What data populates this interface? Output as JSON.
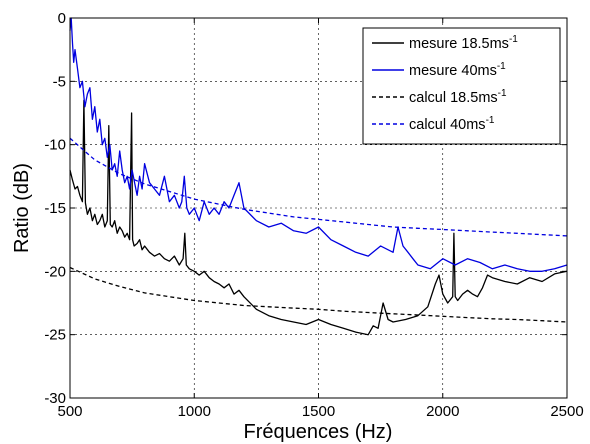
{
  "chart_data": {
    "type": "line",
    "title": "",
    "xlabel": "Fréquences (Hz)",
    "ylabel": "Ratio (dB)",
    "xlim": [
      500,
      2500
    ],
    "ylim": [
      -30,
      0
    ],
    "xticks": [
      500,
      1000,
      1500,
      2000,
      2500
    ],
    "yticks": [
      -30,
      -25,
      -20,
      -15,
      -10,
      -5,
      0
    ],
    "grid": true,
    "legend_position": "top-right",
    "series": [
      {
        "name": "mesure 18.5ms-1",
        "legend_base": "mesure 18.5ms",
        "legend_sup": "-1",
        "color": "#000000",
        "style": "solid",
        "x": [
          500,
          510,
          520,
          530,
          540,
          550,
          556,
          562,
          570,
          580,
          590,
          600,
          610,
          620,
          630,
          640,
          650,
          656,
          662,
          670,
          680,
          690,
          700,
          710,
          720,
          730,
          740,
          748,
          752,
          758,
          770,
          780,
          790,
          800,
          820,
          840,
          860,
          880,
          900,
          920,
          940,
          955,
          962,
          968,
          980,
          1000,
          1020,
          1040,
          1060,
          1080,
          1100,
          1120,
          1140,
          1160,
          1180,
          1200,
          1250,
          1300,
          1350,
          1400,
          1450,
          1500,
          1550,
          1600,
          1650,
          1700,
          1720,
          1740,
          1760,
          1780,
          1800,
          1850,
          1900,
          1940,
          1970,
          1985,
          2000,
          2020,
          2040,
          2045,
          2050,
          2060,
          2080,
          2100,
          2120,
          2140,
          2160,
          2180,
          2200,
          2250,
          2300,
          2350,
          2400,
          2450,
          2500
        ],
        "y": [
          -12,
          -12.8,
          -13.5,
          -13.3,
          -14.0,
          -14.5,
          -6.5,
          -14.6,
          -15.5,
          -15.0,
          -16.0,
          -15.5,
          -16.3,
          -16.0,
          -15.5,
          -16.5,
          -16.0,
          -8.5,
          -16.3,
          -16.5,
          -16.0,
          -17.0,
          -16.5,
          -16.8,
          -17.3,
          -17.0,
          -17.5,
          -7.5,
          -17.5,
          -18.0,
          -17.8,
          -17.5,
          -18.3,
          -18.0,
          -18.5,
          -18.8,
          -18.6,
          -19.0,
          -19.2,
          -18.8,
          -19.5,
          -19.0,
          -17.0,
          -19.5,
          -19.8,
          -20.0,
          -20.3,
          -20.0,
          -20.5,
          -20.8,
          -21.0,
          -21.3,
          -21.0,
          -21.8,
          -21.5,
          -22.0,
          -23.0,
          -23.5,
          -23.8,
          -24.0,
          -24.2,
          -23.8,
          -24.2,
          -24.5,
          -24.8,
          -25.0,
          -24.3,
          -24.5,
          -22.5,
          -23.8,
          -24.0,
          -23.8,
          -23.5,
          -22.8,
          -21.0,
          -20.3,
          -21.8,
          -22.5,
          -22.0,
          -17.0,
          -22.0,
          -22.3,
          -21.8,
          -21.5,
          -21.8,
          -22.0,
          -21.3,
          -20.3,
          -20.5,
          -20.8,
          -21.0,
          -20.5,
          -20.8,
          -20.2,
          -20.0
        ]
      },
      {
        "name": "mesure 40ms-1",
        "legend_base": "mesure 40ms",
        "legend_sup": "-1",
        "color": "#0000e0",
        "style": "solid",
        "x": [
          500,
          505,
          510,
          515,
          520,
          530,
          540,
          550,
          560,
          570,
          580,
          590,
          600,
          610,
          620,
          630,
          640,
          650,
          660,
          670,
          680,
          690,
          700,
          710,
          720,
          730,
          740,
          750,
          760,
          770,
          780,
          790,
          800,
          820,
          840,
          860,
          880,
          900,
          920,
          940,
          950,
          960,
          970,
          980,
          1000,
          1020,
          1040,
          1060,
          1080,
          1100,
          1120,
          1140,
          1160,
          1180,
          1200,
          1250,
          1300,
          1350,
          1400,
          1450,
          1500,
          1550,
          1600,
          1650,
          1700,
          1750,
          1800,
          1820,
          1840,
          1860,
          1880,
          1900,
          1950,
          2000,
          2050,
          2100,
          2150,
          2200,
          2250,
          2300,
          2350,
          2400,
          2450,
          2500
        ],
        "y": [
          -1.0,
          0.0,
          -2.0,
          -3.5,
          -2.5,
          -4.0,
          -5.5,
          -5.0,
          -7.0,
          -6.0,
          -5.5,
          -8.0,
          -7.0,
          -9.0,
          -8.0,
          -10.0,
          -9.5,
          -11.0,
          -10.0,
          -12.0,
          -11.5,
          -12.5,
          -10.5,
          -12.0,
          -13.0,
          -12.5,
          -13.5,
          -12.0,
          -13.0,
          -14.0,
          -12.5,
          -13.5,
          -11.5,
          -13.0,
          -13.5,
          -14.0,
          -12.5,
          -14.5,
          -14.0,
          -15.0,
          -14.5,
          -12.5,
          -15.0,
          -15.5,
          -15.0,
          -16.0,
          -14.5,
          -15.5,
          -15.0,
          -15.5,
          -14.5,
          -15.0,
          -14.0,
          -13.0,
          -15.0,
          -16.0,
          -16.5,
          -16.2,
          -16.8,
          -17.0,
          -16.5,
          -17.5,
          -18.0,
          -18.5,
          -18.8,
          -18.0,
          -18.5,
          -16.5,
          -18.0,
          -18.5,
          -19.0,
          -19.5,
          -19.8,
          -19.0,
          -19.5,
          -19.0,
          -19.3,
          -19.8,
          -19.5,
          -19.8,
          -20.0,
          -20.0,
          -19.8,
          -19.5
        ]
      },
      {
        "name": "calcul 18.5ms-1",
        "legend_base": "calcul 18.5ms",
        "legend_sup": "-1",
        "color": "#000000",
        "style": "dashed",
        "x": [
          500,
          600,
          700,
          800,
          900,
          1000,
          1100,
          1200,
          1300,
          1400,
          1500,
          1600,
          1700,
          1800,
          1900,
          2000,
          2100,
          2200,
          2300,
          2400,
          2500
        ],
        "y": [
          -19.7,
          -20.6,
          -21.2,
          -21.7,
          -22.0,
          -22.3,
          -22.5,
          -22.7,
          -22.8,
          -22.9,
          -23.0,
          -23.15,
          -23.25,
          -23.35,
          -23.45,
          -23.55,
          -23.65,
          -23.75,
          -23.8,
          -23.9,
          -24.0
        ]
      },
      {
        "name": "calcul 40ms-1",
        "legend_base": "calcul 40ms",
        "legend_sup": "-1",
        "color": "#0000e0",
        "style": "dashed",
        "x": [
          500,
          600,
          700,
          800,
          900,
          1000,
          1100,
          1200,
          1300,
          1400,
          1500,
          1600,
          1700,
          1800,
          1900,
          2000,
          2100,
          2200,
          2300,
          2400,
          2500
        ],
        "y": [
          -9.5,
          -11.2,
          -12.3,
          -13.1,
          -13.7,
          -14.3,
          -14.7,
          -15.1,
          -15.4,
          -15.7,
          -15.9,
          -16.1,
          -16.3,
          -16.5,
          -16.6,
          -16.7,
          -16.8,
          -16.9,
          -17.0,
          -17.1,
          -17.2
        ]
      }
    ]
  }
}
